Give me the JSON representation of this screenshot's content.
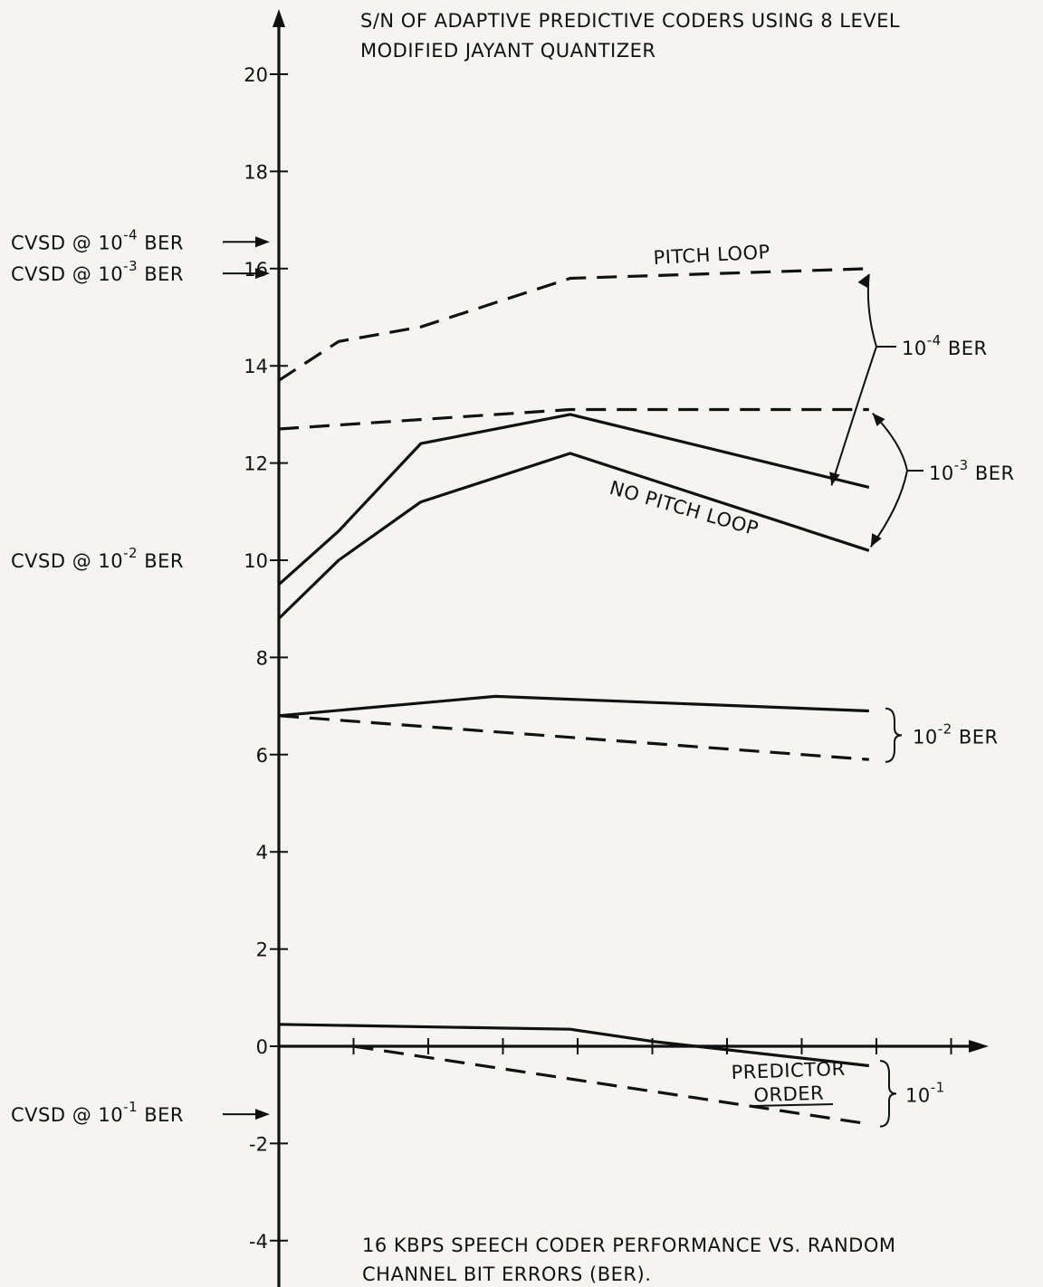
{
  "chart_data": {
    "type": "line",
    "title": [
      "S/N OF ADAPTIVE PREDICTIVE CODERS USING 8 LEVEL",
      "MODIFIED JAYANT QUANTIZER"
    ],
    "caption": [
      "16 KBPS SPEECH CODER PERFORMANCE VS. RANDOM",
      "CHANNEL BIT ERRORS (BER)."
    ],
    "xlabel": "PREDICTOR ORDER",
    "ylabel": "",
    "ylim": [
      -5,
      21
    ],
    "xlim": [
      0,
      9.2
    ],
    "y_ticks": [
      -4,
      -2,
      0,
      2,
      4,
      6,
      8,
      10,
      12,
      14,
      16,
      18,
      20
    ],
    "x_tick_positions": [
      1,
      2,
      3,
      4,
      5,
      6,
      7,
      8,
      9
    ],
    "cvsd_markers": [
      {
        "label": "CVSD @ 10",
        "exp": "-4",
        "suffix": "BER",
        "y": 16.55,
        "arrow": true
      },
      {
        "label": "CVSD @ 10",
        "exp": "-3",
        "suffix": "BER",
        "y": 15.9,
        "arrow": true
      },
      {
        "label": "CVSD @ 10",
        "exp": "-2",
        "suffix": "BER",
        "y": 10.0,
        "arrow": false
      },
      {
        "label": "CVSD @ 10",
        "exp": "-1",
        "suffix": "BER",
        "y": -1.4,
        "arrow": true
      }
    ],
    "series": [
      {
        "style": "dashed",
        "x": [
          0,
          0.8,
          1.9,
          3.9,
          7.9
        ],
        "y": [
          13.7,
          14.5,
          14.8,
          15.8,
          16.0
        ]
      },
      {
        "style": "solid",
        "x": [
          0,
          0.8,
          1.9,
          3.9,
          7.9
        ],
        "y": [
          9.5,
          10.6,
          12.4,
          13.0,
          11.5
        ]
      },
      {
        "style": "dashed",
        "x": [
          0,
          3.9,
          7.9
        ],
        "y": [
          12.7,
          13.1,
          13.1
        ]
      },
      {
        "style": "solid",
        "x": [
          0,
          0.8,
          1.9,
          3.9,
          7.9
        ],
        "y": [
          8.8,
          10.0,
          11.2,
          12.2,
          10.2
        ]
      },
      {
        "style": "solid",
        "x": [
          0,
          2.9,
          7.9
        ],
        "y": [
          6.8,
          7.2,
          6.9
        ]
      },
      {
        "style": "dashed",
        "x": [
          0,
          7.9
        ],
        "y": [
          6.8,
          5.9
        ]
      },
      {
        "style": "solid",
        "x": [
          0,
          3.9,
          5.0,
          7.9
        ],
        "y": [
          0.45,
          0.35,
          0.1,
          -0.4
        ]
      },
      {
        "style": "dashed",
        "x": [
          1.0,
          7.9
        ],
        "y": [
          0.0,
          -1.6
        ]
      }
    ],
    "annotations": [
      {
        "text": "PITCH LOOP"
      },
      {
        "text": "NO PITCH LOOP"
      }
    ],
    "groups": [
      {
        "label": "10",
        "exp": "-4",
        "suffix": "BER"
      },
      {
        "label": "10",
        "exp": "-3",
        "suffix": "BER"
      },
      {
        "label": "10",
        "exp": "-2",
        "suffix": "BER"
      },
      {
        "label": "10",
        "exp": "-1",
        "suffix": ""
      }
    ]
  }
}
